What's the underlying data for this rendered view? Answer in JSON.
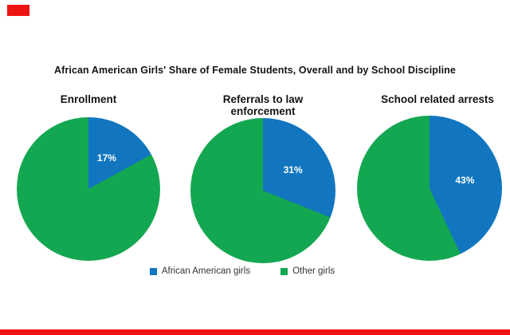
{
  "artifacts": {
    "mark_color": "#ee1412"
  },
  "chart_data": {
    "type": "pie",
    "title": "African American Girls' Share of Female Students, Overall and by School Discipline",
    "categories": [
      "African American girls",
      "Other girls"
    ],
    "colors": {
      "african_american_girls": "#1176bf",
      "other_girls": "#14a751"
    },
    "slice_start": "12 o'clock, clockwise, blue slice first",
    "pies": [
      {
        "title": "Enrollment",
        "pct": 17,
        "data_label": "17%",
        "values": [
          {
            "name": "African American girls",
            "pct": 17
          },
          {
            "name": "Other girls",
            "pct": 83
          }
        ]
      },
      {
        "title": "Referrals to law enforcement",
        "pct": 31,
        "data_label": "31%",
        "values": [
          {
            "name": "African American girls",
            "pct": 31
          },
          {
            "name": "Other girls",
            "pct": 69
          }
        ]
      },
      {
        "title": "School related arrests",
        "pct": 43,
        "data_label": "43%",
        "values": [
          {
            "name": "African American girls",
            "pct": 43
          },
          {
            "name": "Other girls",
            "pct": 57
          }
        ]
      }
    ],
    "legend": {
      "position": "bottom-center",
      "items": [
        {
          "label": "African American girls",
          "color": "#1176bf"
        },
        {
          "label": "Other girls",
          "color": "#14a751"
        }
      ]
    }
  }
}
